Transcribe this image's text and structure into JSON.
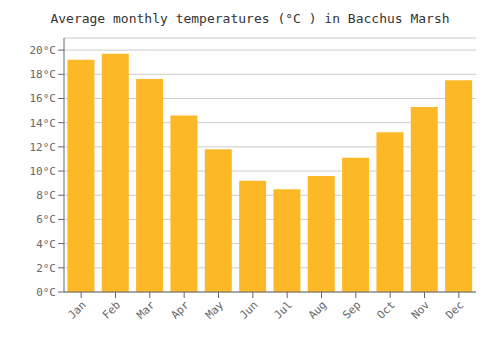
{
  "chart_data": {
    "type": "bar",
    "title": "Average monthly temperatures (°C ) in Bacchus Marsh",
    "categories": [
      "Jan",
      "Feb",
      "Mar",
      "Apr",
      "May",
      "Jun",
      "Jul",
      "Aug",
      "Sep",
      "Oct",
      "Nov",
      "Dec"
    ],
    "values": [
      19.2,
      19.7,
      17.6,
      14.6,
      11.8,
      9.2,
      8.5,
      9.6,
      11.1,
      13.2,
      15.3,
      17.5
    ],
    "color": "#FDB827",
    "ylim": [
      0,
      21
    ],
    "yticks": [
      {
        "value": 0,
        "label": "0°C"
      },
      {
        "value": 2,
        "label": "2°C"
      },
      {
        "value": 4,
        "label": "4°C"
      },
      {
        "value": 6,
        "label": "6°C"
      },
      {
        "value": 8,
        "label": "8°C"
      },
      {
        "value": 10,
        "label": "10°C"
      },
      {
        "value": 12,
        "label": "12°C"
      },
      {
        "value": 14,
        "label": "14°C"
      },
      {
        "value": 16,
        "label": "16°C"
      },
      {
        "value": 18,
        "label": "18°C"
      },
      {
        "value": 20,
        "label": "20°C"
      }
    ],
    "grid": true
  }
}
